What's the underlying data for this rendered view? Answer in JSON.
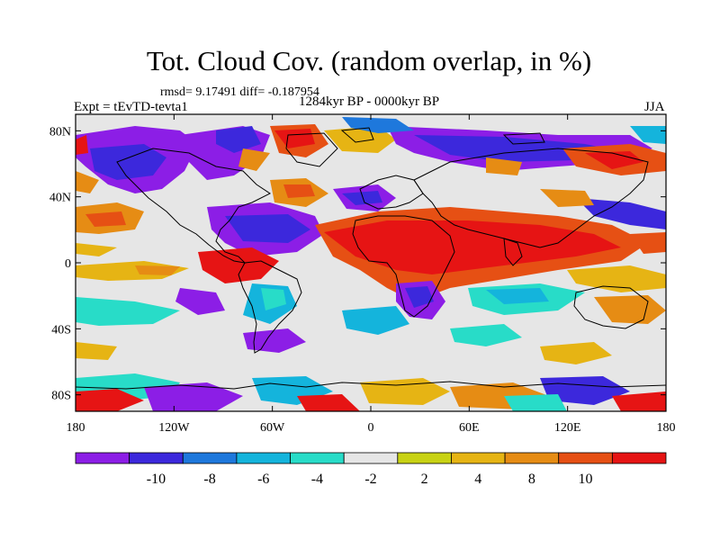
{
  "title": "Tot. Cloud Cov. (random overlap, in %)",
  "stats_line": "rmsd= 9.17491 diff= -0.187954",
  "experiment_label": "Expt = tEvTD-tevta1",
  "period_label": "1284kyr BP - 0000kyr BP",
  "season_label": "JJA",
  "map": {
    "lon_range": [
      -180,
      180
    ],
    "lat_range": [
      -90,
      90
    ],
    "lat_ticks": [
      {
        "value": 80,
        "label": "80N"
      },
      {
        "value": 40,
        "label": "40N"
      },
      {
        "value": 0,
        "label": "0"
      },
      {
        "value": -40,
        "label": "40S"
      },
      {
        "value": -80,
        "label": "80S"
      }
    ],
    "lon_ticks": [
      {
        "value": -180,
        "label": "180"
      },
      {
        "value": -120,
        "label": "120W"
      },
      {
        "value": -60,
        "label": "60W"
      },
      {
        "value": 0,
        "label": "0"
      },
      {
        "value": 60,
        "label": "60E"
      },
      {
        "value": 120,
        "label": "120E"
      },
      {
        "value": 180,
        "label": "180"
      }
    ],
    "background_color": "#e6e6e6"
  },
  "colorbar": {
    "colors": [
      "#8c1ee6",
      "#3c28dc",
      "#1e78dc",
      "#14b4dc",
      "#28dcc8",
      "#e6e6e6",
      "#c8d214",
      "#e6b414",
      "#e68c14",
      "#e65014",
      "#e61414"
    ],
    "labels": [
      "-10",
      "-8",
      "-6",
      "-4",
      "-2",
      "2",
      "4",
      "8",
      "10"
    ]
  }
}
